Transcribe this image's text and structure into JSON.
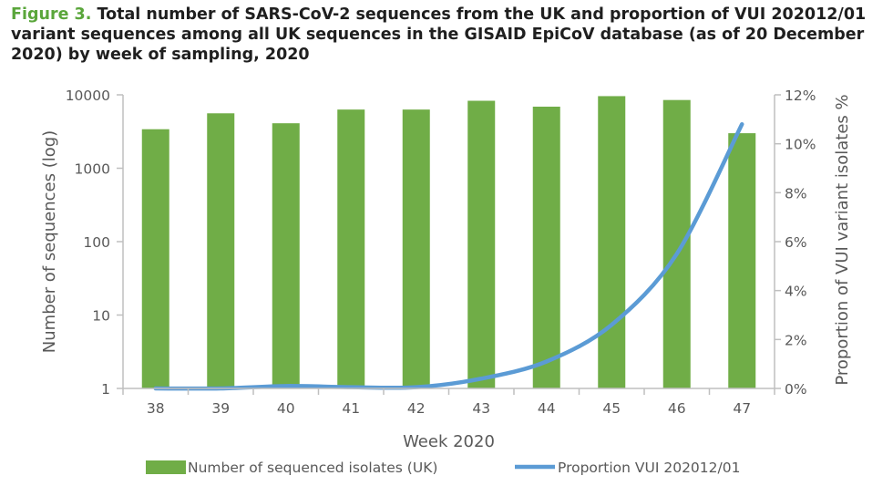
{
  "caption": {
    "figure_label": "Figure 3.",
    "text": "Total number of SARS-CoV-2 sequences from the UK and proportion of VUI 202012/01 variant sequences among all UK sequences in the GISAID EpiCoV database (as of 20 December 2020) by week of sampling, 2020"
  },
  "colors": {
    "bar": "#70ad47",
    "line": "#5b9bd5",
    "axis": "#bfbfbf",
    "text": "#595959",
    "figure_label": "#5aa63b"
  },
  "chart_data": {
    "type": "bar",
    "categories": [
      "38",
      "39",
      "40",
      "41",
      "42",
      "43",
      "44",
      "45",
      "46",
      "47"
    ],
    "series": [
      {
        "name": "Number of sequenced isolates (UK)",
        "type": "bar",
        "axis": "left",
        "values": [
          3400,
          5600,
          4100,
          6300,
          6300,
          8300,
          6900,
          9600,
          8500,
          3000
        ]
      },
      {
        "name": "Proportion VUI 202012/01",
        "type": "line",
        "axis": "right",
        "values": [
          0.0,
          0.0,
          0.1,
          0.05,
          0.05,
          0.4,
          1.1,
          2.6,
          5.5,
          10.8
        ]
      }
    ],
    "xlabel": "Week 2020",
    "ylabel": "Number of sequences (log)",
    "y2label": "Proportion of VUI variant isolates %",
    "yscale": "log",
    "ylim": [
      1,
      10000
    ],
    "yticks": [
      "1",
      "10",
      "100",
      "1000",
      "10000"
    ],
    "y2lim": [
      0,
      12
    ],
    "y2ticks": [
      "0%",
      "2%",
      "4%",
      "6%",
      "8%",
      "10%",
      "12%"
    ],
    "legend_position": "bottom"
  }
}
